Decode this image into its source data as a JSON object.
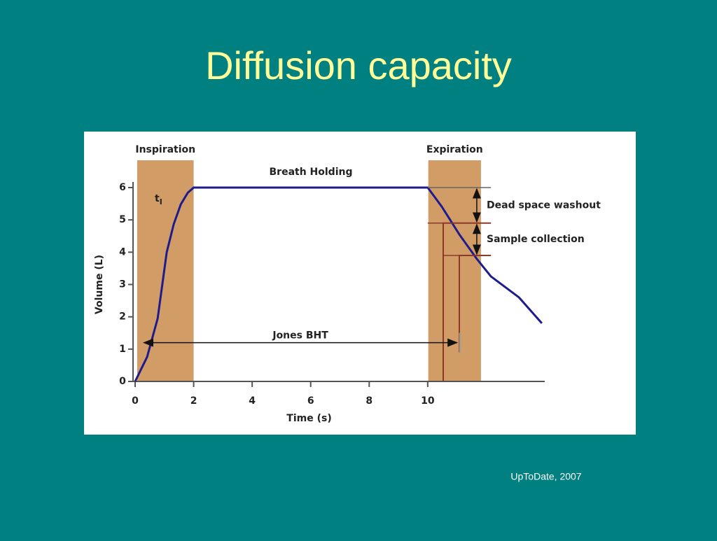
{
  "slide": {
    "title": "Diffusion capacity",
    "source": "UpToDate, 2007"
  },
  "chart_data": {
    "type": "line",
    "xlabel": "Time (s)",
    "ylabel": "Volume (L)",
    "xlim": [
      0,
      14
    ],
    "xticks": [
      0,
      2,
      4,
      6,
      8,
      10
    ],
    "ylim": [
      0,
      6
    ],
    "yticks": [
      0,
      1,
      2,
      3,
      4,
      5,
      6
    ],
    "series": [
      {
        "color": "#1c1c8c",
        "x": [
          0,
          0.41,
          0.77,
          1.08,
          1.32,
          1.56,
          1.8,
          2,
          10,
          10.48,
          11.08,
          11.68,
          12.16,
          13.12,
          13.9
        ],
        "values": [
          0,
          0.76,
          1.95,
          4.0,
          4.87,
          5.48,
          5.84,
          6,
          6,
          5.41,
          4.55,
          3.79,
          3.25,
          2.6,
          1.8
        ]
      }
    ],
    "bands": [
      {
        "label": "Inspiration",
        "start": 0.07,
        "end": 2,
        "color": "#d29c66"
      },
      {
        "label": "Expiration",
        "start": 10.02,
        "end": 11.82,
        "color": "#d29c66"
      }
    ],
    "hold_label": "Breath Holding",
    "t_label": {
      "main": "t",
      "sub": "I"
    },
    "jones": {
      "label": "Jones BHT",
      "start": 0.3,
      "end": 11.0,
      "y": 1.2
    },
    "intervals": [
      {
        "label": "Dead space washout",
        "from": 6,
        "to": 4.9
      },
      {
        "label": "Sample collection",
        "from": 4.9,
        "to": 3.9
      }
    ],
    "sample_lines": [
      {
        "x": 10.53,
        "y0": 0,
        "y1": 4.9
      },
      {
        "x": 11.08,
        "y0": 0.9,
        "y1": 3.9
      }
    ],
    "marker_color": "#8b3a2a"
  }
}
